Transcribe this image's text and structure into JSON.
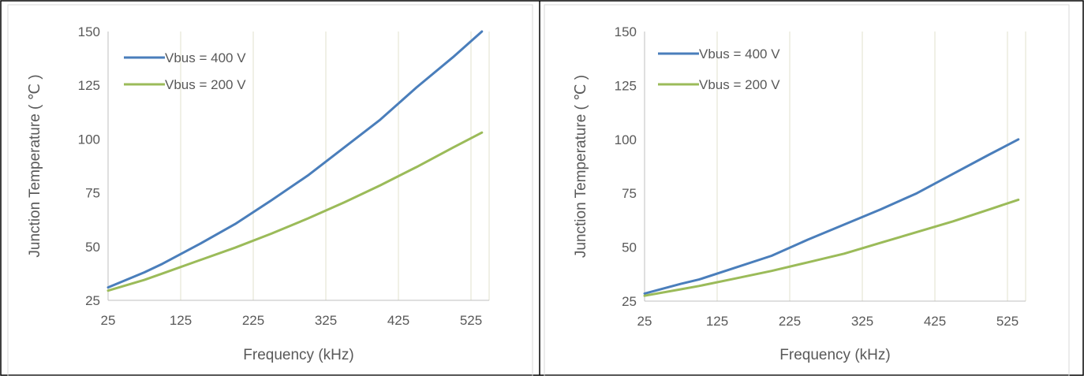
{
  "chart_data": [
    {
      "type": "line",
      "title": "",
      "xlabel": "Frequency (kHz)",
      "ylabel": "Junction Temperature ( ℃ )",
      "xticks": [
        "25",
        "125",
        "225",
        "325",
        "425",
        "525"
      ],
      "yticks": [
        "25",
        "50",
        "75",
        "100",
        "125",
        "150"
      ],
      "xlim": [
        25,
        550
      ],
      "ylim": [
        25,
        150
      ],
      "grid": "vertical",
      "legend_position": "top-left",
      "series": [
        {
          "name": "Vbus = 400 V",
          "color": "#4a7ebb",
          "x": [
            25,
            75,
            100,
            150,
            200,
            250,
            300,
            350,
            400,
            450,
            500,
            540
          ],
          "y": [
            31,
            38,
            42,
            51,
            60.5,
            71.5,
            83,
            96,
            109,
            124,
            138,
            150
          ]
        },
        {
          "name": "Vbus = 200 V",
          "color": "#9bbb59",
          "x": [
            25,
            75,
            100,
            150,
            200,
            250,
            300,
            350,
            400,
            450,
            500,
            540
          ],
          "y": [
            29.5,
            34.5,
            37.5,
            43.5,
            49.5,
            56,
            63,
            70.5,
            78.5,
            87,
            96,
            103
          ]
        }
      ]
    },
    {
      "type": "line",
      "title": "",
      "xlabel": "Frequency (kHz)",
      "ylabel": "Junction Temperature ( ℃ )",
      "xticks": [
        "25",
        "125",
        "225",
        "325",
        "425",
        "525"
      ],
      "yticks": [
        "25",
        "50",
        "75",
        "100",
        "125",
        "150"
      ],
      "xlim": [
        25,
        550
      ],
      "ylim": [
        25,
        150
      ],
      "grid": "vertical",
      "legend_position": "top-left",
      "series": [
        {
          "name": "Vbus = 400 V",
          "color": "#4a7ebb",
          "x": [
            25,
            75,
            100,
            150,
            200,
            250,
            300,
            350,
            400,
            450,
            500,
            540
          ],
          "y": [
            28.5,
            33,
            35,
            40.5,
            46,
            53.5,
            60.5,
            67.5,
            75,
            84,
            93,
            100
          ]
        },
        {
          "name": "Vbus = 200 V",
          "color": "#9bbb59",
          "x": [
            25,
            75,
            100,
            150,
            200,
            250,
            300,
            350,
            400,
            450,
            500,
            540
          ],
          "y": [
            27.5,
            30.5,
            32,
            35.5,
            39,
            43,
            47,
            52,
            57,
            62,
            67.5,
            72
          ]
        }
      ]
    }
  ]
}
